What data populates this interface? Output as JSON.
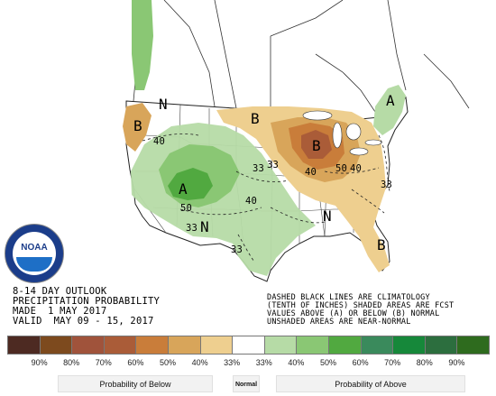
{
  "outlook": {
    "line1": "8-14 DAY OUTLOOK",
    "line2": "PRECIPITATION PROBABILITY",
    "made": "MADE  1 MAY 2017",
    "valid": "VALID  MAY 09 - 15, 2017"
  },
  "notes": {
    "line1": "DASHED BLACK LINES ARE CLIMATOLOGY",
    "line2": "(TENTH OF INCHES) SHADED AREAS ARE FCST",
    "line3": "VALUES ABOVE (A) OR BELOW (B) NORMAL",
    "line4": "UNSHADED AREAS ARE NEAR-NORMAL"
  },
  "logo_text": "NOAA",
  "map_labels": {
    "b_west": "B",
    "b_north": "B",
    "b_great_lakes": "B",
    "b_florida": "B",
    "a_rockies": "A",
    "a_new_england": "A",
    "n_northwest": "N",
    "n_southeast": "N",
    "n_southwest": "N",
    "c40_a": "40",
    "c33_a": "33",
    "c50_a": "50",
    "c33_b": "33",
    "c40_b": "40",
    "c33_c": "33",
    "c50_b": "50",
    "c40_c": "40",
    "c33_d": "33",
    "c40_d": "40",
    "c33_e": "33"
  },
  "legend": {
    "swatch_colors": [
      "#4d2a22",
      "#7d4a1e",
      "#a0533b",
      "#aa5c38",
      "#c97d3a",
      "#d8a55a",
      "#eecf8f",
      "#ffffff",
      "#b6dba6",
      "#8ac774",
      "#51a940",
      "#3a8a5c",
      "#16883a",
      "#2c6e3e",
      "#2e6b1e"
    ],
    "percents": [
      "90%",
      "80%",
      "70%",
      "60%",
      "50%",
      "40%",
      "33%",
      "33%",
      "40%",
      "50%",
      "60%",
      "70%",
      "80%",
      "90%"
    ],
    "below_label": "Probability of Below",
    "normal_label": "Normal",
    "above_label": "Probability of Above"
  }
}
